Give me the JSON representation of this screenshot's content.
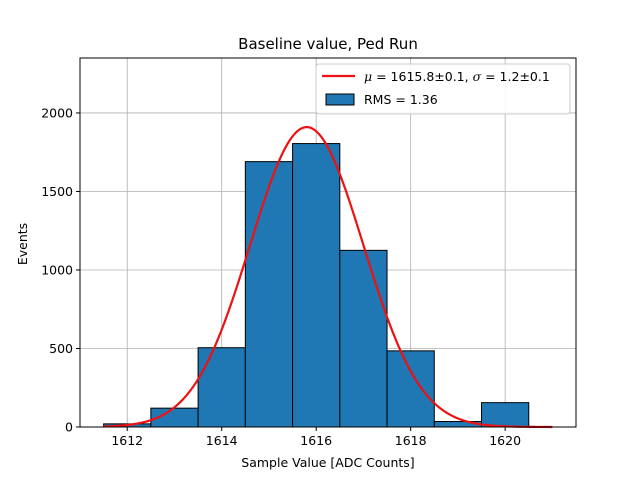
{
  "chart_data": {
    "type": "bar",
    "title": "Baseline value, Ped Run",
    "xlabel": "Sample Value [ADC Counts]",
    "ylabel": "Events",
    "xlim": [
      1611.0,
      1621.5
    ],
    "ylim": [
      0,
      2350
    ],
    "x_ticks": [
      1612,
      1614,
      1616,
      1618,
      1620
    ],
    "y_ticks": [
      0,
      500,
      1000,
      1500,
      2000
    ],
    "grid": true,
    "bins": [
      {
        "left": 1611.5,
        "right": 1612.5,
        "count": 20
      },
      {
        "left": 1612.5,
        "right": 1613.5,
        "count": 120
      },
      {
        "left": 1613.5,
        "right": 1614.5,
        "count": 505
      },
      {
        "left": 1614.5,
        "right": 1615.5,
        "count": 1690
      },
      {
        "left": 1615.5,
        "right": 1616.5,
        "count": 1805
      },
      {
        "left": 1616.5,
        "right": 1617.5,
        "count": 1125
      },
      {
        "left": 1617.5,
        "right": 1618.5,
        "count": 485
      },
      {
        "left": 1618.5,
        "right": 1619.5,
        "count": 35
      },
      {
        "left": 1619.5,
        "right": 1620.5,
        "count": 155
      }
    ],
    "fit": {
      "type": "gaussian",
      "mu": 1615.8,
      "sigma": 1.2,
      "amplitude": 1910,
      "x_range": [
        1611.5,
        1621.0
      ],
      "color": "#ee1111"
    },
    "bar_color": "#1f77b4",
    "legend_position": "top-right",
    "legend": {
      "fit_label_prefix_mu": "μ",
      "fit_label_value1": " = 1615.8±0.1, ",
      "fit_label_prefix_sigma": "σ",
      "fit_label_value2": " = 1.2±0.1",
      "hist_label": "RMS = 1.36"
    }
  }
}
